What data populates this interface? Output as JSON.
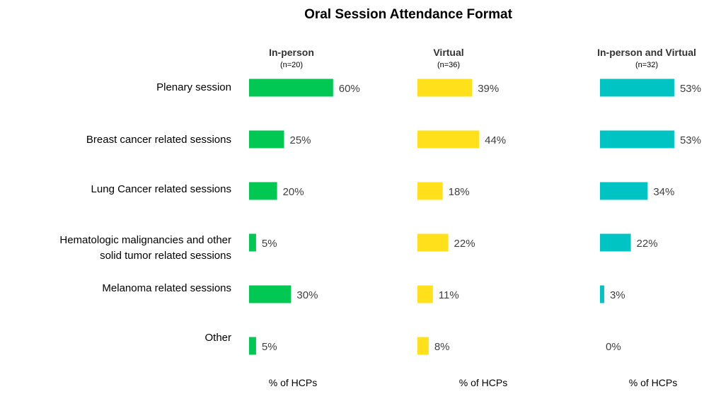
{
  "chart_data": {
    "type": "bar",
    "title": "Oral Session Attendance Format",
    "categories": [
      [
        "Plenary session"
      ],
      [
        "Breast cancer related sessions"
      ],
      [
        "Lung Cancer related sessions"
      ],
      [
        "Hematologic malignancies and other",
        "solid tumor related sessions"
      ],
      [
        "Melanoma related sessions"
      ],
      [
        "Other"
      ]
    ],
    "series": [
      {
        "name": "In-person",
        "n_label": "(n=20)",
        "color": "#00C853",
        "values": [
          60,
          25,
          20,
          5,
          30,
          5
        ],
        "value_labels": [
          "60%",
          "25%",
          "20%",
          "5%",
          "30%",
          "5%"
        ],
        "xlabel": "% of HCPs"
      },
      {
        "name": "Virtual",
        "n_label": "(n=36)",
        "color": "#FFE01B",
        "values": [
          39,
          44,
          18,
          22,
          11,
          8
        ],
        "value_labels": [
          "39%",
          "44%",
          "18%",
          "22%",
          "11%",
          "8%"
        ],
        "xlabel": "% of HCPs"
      },
      {
        "name": "In-person and Virtual",
        "n_label": "(n=32)",
        "color": "#00C4C4",
        "values": [
          53,
          53,
          34,
          22,
          3,
          0
        ],
        "value_labels": [
          "53%",
          "53%",
          "34%",
          "22%",
          "3%",
          "0%"
        ],
        "xlabel": "% of HCPs"
      }
    ],
    "value_label_color": "#404040",
    "grid": false,
    "legend": "none"
  }
}
